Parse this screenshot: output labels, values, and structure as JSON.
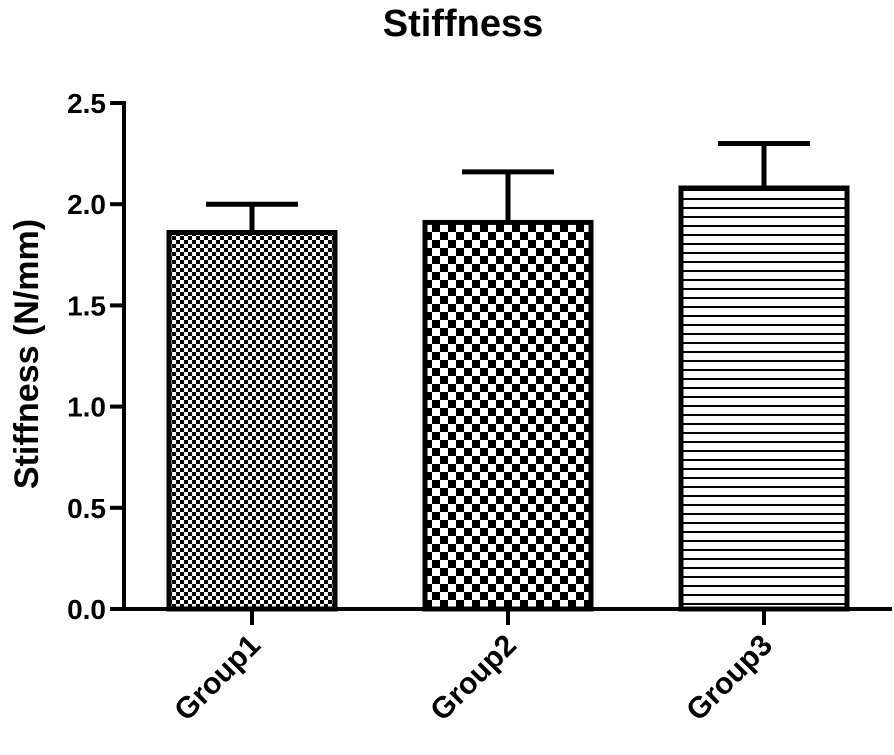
{
  "chart_data": {
    "type": "bar",
    "title": "Stiffness",
    "xlabel": "",
    "ylabel": "Stiffness (N/mm)",
    "ylim": [
      0,
      2.5
    ],
    "yticks": [
      "0.0",
      "0.5",
      "1.0",
      "1.5",
      "2.0",
      "2.5"
    ],
    "categories": [
      "Group1",
      "Group2",
      "Group3"
    ],
    "values": [
      1.86,
      1.91,
      2.08
    ],
    "error_upper": [
      0.14,
      0.25,
      0.22
    ],
    "fill_patterns": [
      "fine-checker",
      "coarse-checker",
      "horizontal-lines"
    ],
    "colors": {
      "ink": "#000000",
      "background": "#ffffff"
    }
  }
}
